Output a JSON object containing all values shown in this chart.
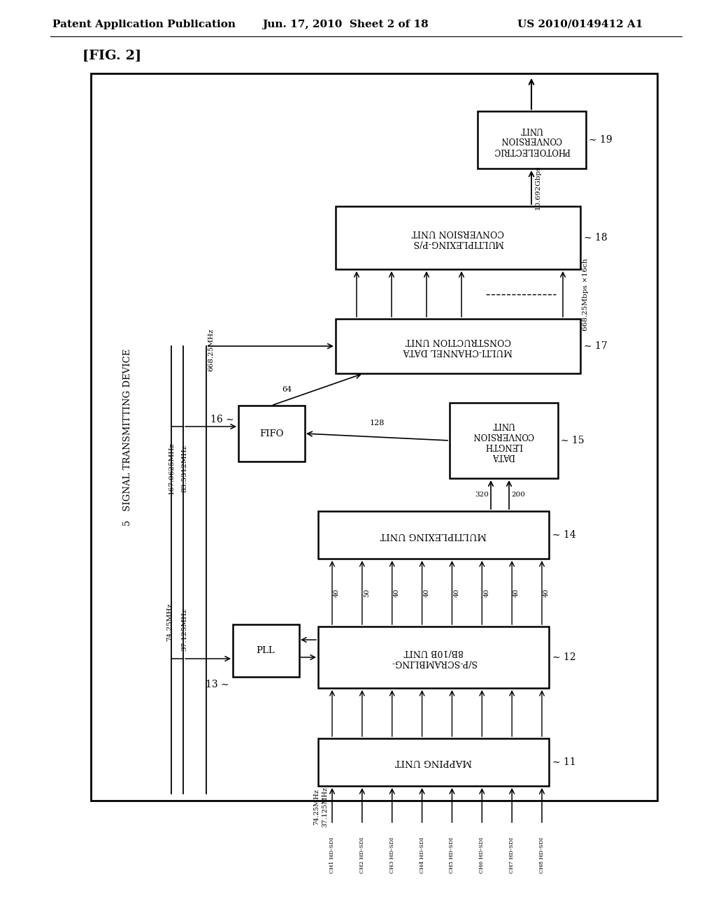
{
  "bg_color": "#ffffff",
  "header_left": "Patent Application Publication",
  "header_mid": "Jun. 17, 2010  Sheet 2 of 18",
  "header_right": "US 2010/0149412 A1",
  "fig_label": "[FIG. 2]",
  "block_11_label": "MAPPING UNIT",
  "block_12_label": "S/P-SCRAMBLING-\n8B/10B UNIT",
  "block_13_label": "PLL",
  "block_14_label": "MULTIPLEXING UNIT",
  "block_15_label": "DATA\nLENGTH\nCONVERSION\nUNIT",
  "block_16_label": "FIFO",
  "block_17_label": "MULTI-CHANNEL DATA\nCONSTRUCTION UNIT",
  "block_18_label": "MULTIPLEXING-P/S\nCONVERSION UNIT",
  "block_19_label": "PHOTOELECTRIC\nCONVERSION\nUNIT",
  "device_label": "5   SIGNAL TRANSMITTING DEVICE",
  "ch_labels": [
    "CH1 HD-SDI",
    "CH2 HD-SDI",
    "CH3 HD-SDI",
    "CH4 HD-SDI",
    "CH5 HD-SDI",
    "CH6 HD-SDI",
    "CH7 HD-SDI",
    "CH8 HD-SDI"
  ],
  "mux_vals": [
    "40",
    "50",
    "40",
    "40",
    "40",
    "40",
    "40",
    "40"
  ],
  "freq_74": "74.25MHz",
  "freq_37": "37.125MHz",
  "freq_668": "668.25MHz",
  "freq_167": "167.0625MHz",
  "freq_83": "83.5312MHz",
  "val_200": "200",
  "val_320": "320",
  "val_128": "128",
  "val_64": "64",
  "val_668mbps": "668.25Mbps ×16ch",
  "val_10gbps": "10.692Gbps",
  "ref_11": "11",
  "ref_12": "12",
  "ref_13": "13",
  "ref_14": "14",
  "ref_15": "15",
  "ref_16": "16",
  "ref_17": "17",
  "ref_18": "18",
  "ref_19": "19"
}
